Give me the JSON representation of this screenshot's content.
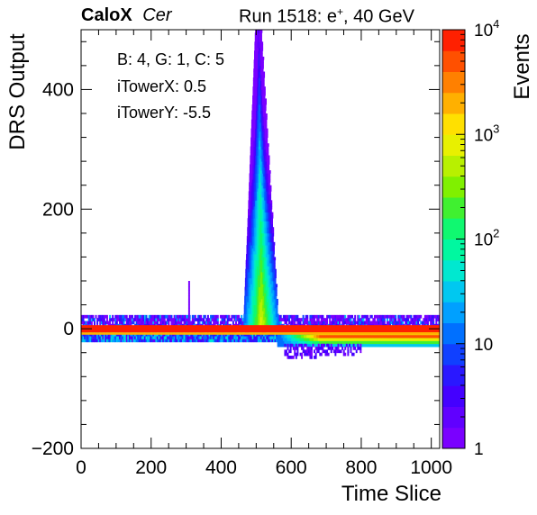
{
  "header": {
    "experiment": "CaloX",
    "channel": "Cer",
    "run_text": "Run 1518: e",
    "run_sup": "+",
    "run_suffix": ", 40 GeV"
  },
  "info_box": {
    "line1": "B: 4, G: 1, C: 5",
    "line2": "iTowerX: 0.5",
    "line3": "iTowerY: -5.5"
  },
  "chart_data": {
    "type": "heatmap",
    "title": "",
    "xlabel": "Time Slice",
    "ylabel": "DRS Output",
    "zlabel": "Events",
    "xlim": [
      0,
      1024
    ],
    "ylim": [
      -200,
      500
    ],
    "zlim": [
      1,
      10000
    ],
    "z_scale": "log",
    "x_ticks": [
      "0",
      "200",
      "400",
      "600",
      "800",
      "1000"
    ],
    "y_ticks": [
      "−200",
      "0",
      "200",
      "400"
    ],
    "z_ticks": [
      {
        "value": 1,
        "label": "1"
      },
      {
        "value": 10,
        "label": "10"
      },
      {
        "value": 100,
        "label": "10",
        "sup": "2"
      },
      {
        "value": 1000,
        "label": "10",
        "sup": "3"
      },
      {
        "value": 10000,
        "label": "10",
        "sup": "4"
      }
    ],
    "palette": [
      "#7a00ff",
      "#6000ff",
      "#4400ff",
      "#2a18ff",
      "#1040ff",
      "#0070ff",
      "#00a0ff",
      "#00c8f0",
      "#00e8d0",
      "#00f8a0",
      "#10f870",
      "#40f030",
      "#80f000",
      "#b8f000",
      "#e8f000",
      "#ffe000",
      "#ffb000",
      "#ff8000",
      "#ff5000",
      "#ff2000"
    ],
    "regions": [
      {
        "name": "pedestal band",
        "x": [
          0,
          1024
        ],
        "y": [
          -3,
          3
        ],
        "z": 8000
      },
      {
        "name": "pedestal noise upper",
        "x": [
          0,
          1024
        ],
        "y": [
          3,
          22
        ],
        "z_range": [
          1,
          30
        ]
      },
      {
        "name": "pedestal noise lower",
        "x": [
          0,
          1024
        ],
        "y": [
          -22,
          -3
        ],
        "z_range": [
          2,
          60
        ]
      },
      {
        "name": "signal pulse",
        "x_peak": 505,
        "y": [
          0,
          500
        ],
        "z_range": [
          1,
          1000
        ]
      },
      {
        "name": "undershoot",
        "x": [
          560,
          1024
        ],
        "y": [
          -30,
          -5
        ],
        "z_range": [
          20,
          3000
        ]
      },
      {
        "name": "undershoot tail",
        "x": [
          580,
          800
        ],
        "y": [
          -60,
          -20
        ],
        "z_range": [
          1,
          5
        ]
      },
      {
        "name": "isolated spike",
        "x": [
          300,
          310
        ],
        "y": [
          0,
          80
        ],
        "z": 1
      }
    ]
  }
}
